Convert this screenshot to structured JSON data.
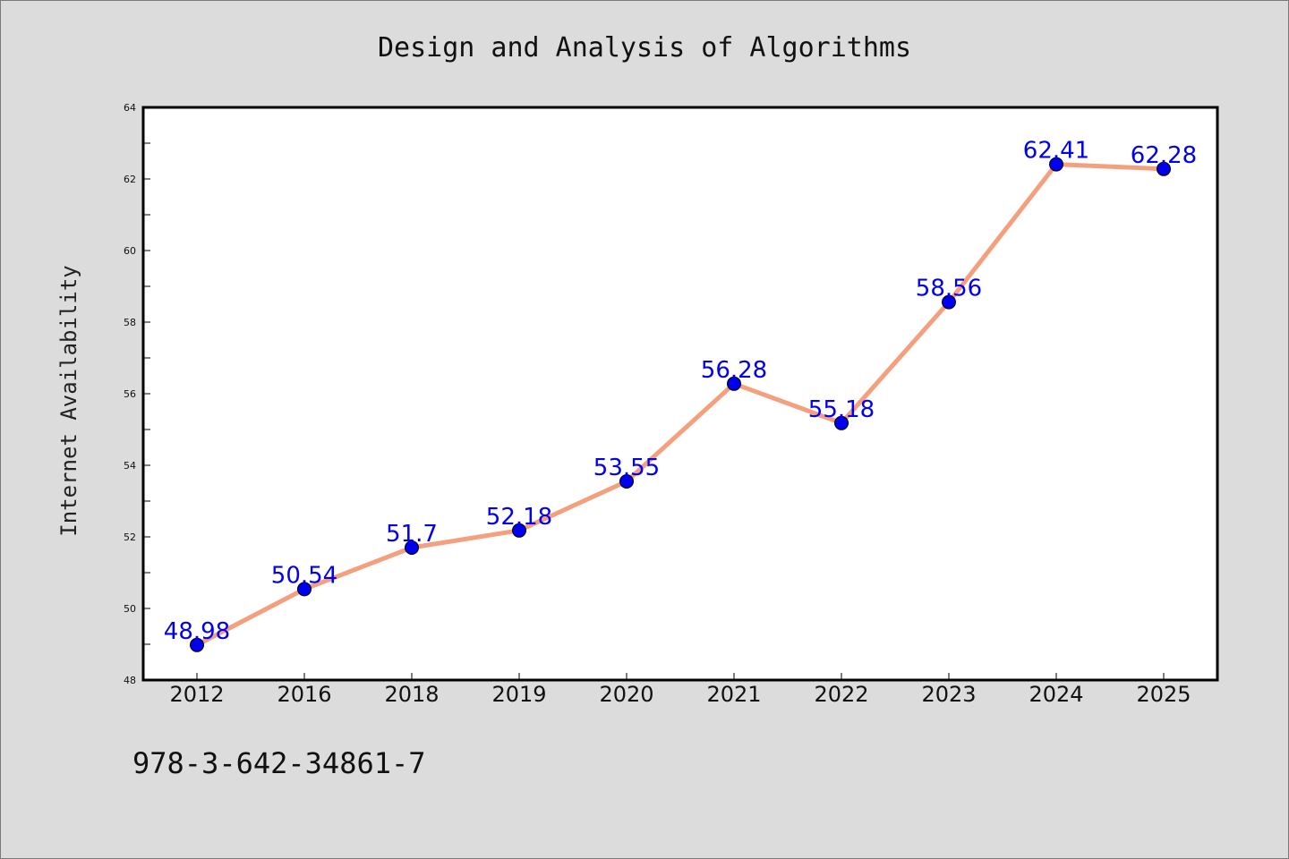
{
  "chart_data": {
    "type": "line",
    "title": "Design and Analysis of Algorithms",
    "xlabel": "",
    "ylabel": "Internet Availability",
    "categories": [
      "2012",
      "2016",
      "2018",
      "2019",
      "2020",
      "2021",
      "2022",
      "2023",
      "2024",
      "2025"
    ],
    "series": [
      {
        "values": [
          48.98,
          50.54,
          51.7,
          52.18,
          53.55,
          56.28,
          55.18,
          58.56,
          62.41,
          62.28
        ],
        "data_labels": [
          "48.98",
          "50.54",
          "51.7",
          "52.18",
          "53.55",
          "56.28",
          "55.18",
          "58.56",
          "62.41",
          "62.28"
        ]
      }
    ],
    "ylim": [
      48,
      64
    ],
    "yticks": [
      48,
      50,
      52,
      54,
      56,
      58,
      60,
      62,
      64
    ],
    "grid": false,
    "legend": "none",
    "colors": {
      "line": "#f4a07e",
      "marker": "#0000ee",
      "label": "#0000ee",
      "background": "#dcdcdc",
      "plot_background": "#ffffff"
    }
  },
  "footer": {
    "isbn": "978-3-642-34861-7"
  }
}
